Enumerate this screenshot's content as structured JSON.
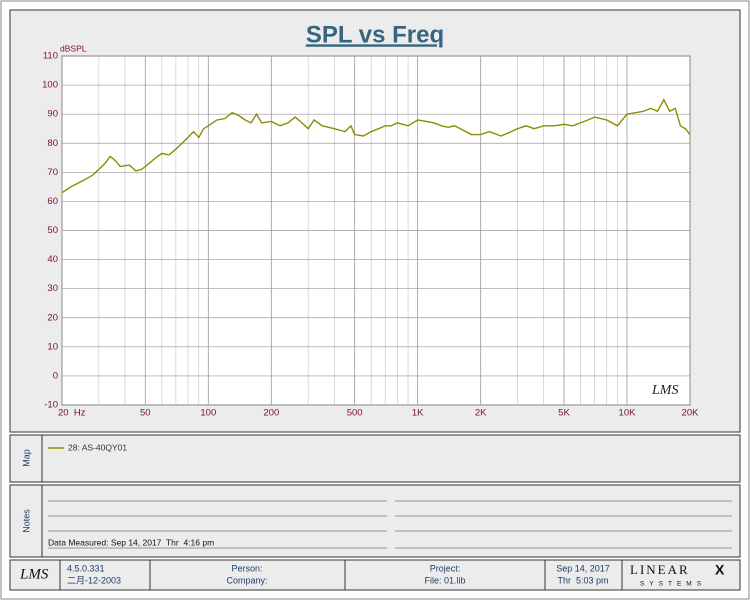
{
  "chart_data": {
    "type": "line",
    "title": "SPL vs Freq",
    "y_label": "dBSPL",
    "x_scale": "log",
    "xlim": [
      20,
      20000
    ],
    "ylim": [
      -10,
      110
    ],
    "yticks": [
      -10,
      0,
      10,
      20,
      30,
      40,
      50,
      60,
      70,
      80,
      90,
      100,
      110
    ],
    "xticks": [
      {
        "value": 20,
        "label": "20  Hz"
      },
      50,
      100,
      200,
      500,
      {
        "value": 1000,
        "label": "1K"
      },
      {
        "value": 2000,
        "label": "2K"
      },
      {
        "value": 5000,
        "label": "5K"
      },
      {
        "value": 10000,
        "label": "10K"
      },
      {
        "value": 20000,
        "label": "20K"
      }
    ],
    "x_minor_grid": [
      30,
      40,
      60,
      70,
      80,
      90,
      300,
      400,
      600,
      700,
      800,
      900,
      3000,
      4000,
      6000,
      7000,
      8000,
      9000
    ],
    "grid": true,
    "watermark": "LMS",
    "x": [
      20,
      22,
      25,
      28,
      30,
      32,
      34,
      36,
      38,
      42,
      45,
      48,
      52,
      56,
      60,
      65,
      70,
      75,
      80,
      85,
      90,
      95,
      100,
      110,
      120,
      130,
      140,
      150,
      160,
      170,
      180,
      200,
      220,
      240,
      260,
      280,
      300,
      320,
      350,
      400,
      450,
      480,
      500,
      550,
      600,
      650,
      700,
      750,
      800,
      900,
      1000,
      1100,
      1200,
      1300,
      1400,
      1500,
      1600,
      1700,
      1800,
      2000,
      2200,
      2500,
      2800,
      3000,
      3300,
      3600,
      4000,
      4500,
      5000,
      5500,
      6000,
      6500,
      7000,
      8000,
      9000,
      10000,
      11000,
      12000,
      13000,
      14000,
      15000,
      16000,
      17000,
      18000,
      19000,
      20000
    ],
    "series": [
      {
        "name": "28: AS-40QY01",
        "color": "#8c8c00",
        "values": [
          63,
          65,
          67,
          69,
          71,
          73,
          75.5,
          74,
          72,
          72.5,
          70.5,
          71,
          73,
          75,
          76.5,
          76,
          78,
          80,
          82,
          84,
          82,
          85,
          86,
          88,
          88.5,
          90.5,
          89.5,
          88,
          87,
          90,
          87,
          87.5,
          86,
          87,
          89,
          87,
          85,
          88,
          86,
          85,
          84,
          86,
          83,
          82.5,
          84,
          85,
          86,
          86,
          87,
          86,
          88,
          87.5,
          87,
          86,
          85.5,
          86,
          85,
          84,
          83,
          83,
          84,
          82.5,
          84,
          85,
          86,
          85,
          86,
          86,
          86.5,
          86,
          87,
          88,
          89,
          88,
          86,
          90,
          90.5,
          91,
          92,
          91,
          95,
          91,
          92,
          86,
          85,
          83
        ]
      }
    ]
  },
  "map": {
    "label": "Map"
  },
  "notes": {
    "label": "Notes",
    "lines": [
      "Data Measured: Sep 14, 2017  Thr  4:16 pm"
    ]
  },
  "footer": {
    "logo": "LMS",
    "version": "4.5.0.331",
    "date": "二月-12-2003",
    "person": "Person:",
    "company": "Company:",
    "project": "Project:",
    "file": "File: 01.lib",
    "measured_date": "Sep 14, 2017",
    "measured_time": "Thr  5:03 pm",
    "brand": "LINEAR",
    "brand_x": "X",
    "brand_sub": "SYSTEMS"
  }
}
